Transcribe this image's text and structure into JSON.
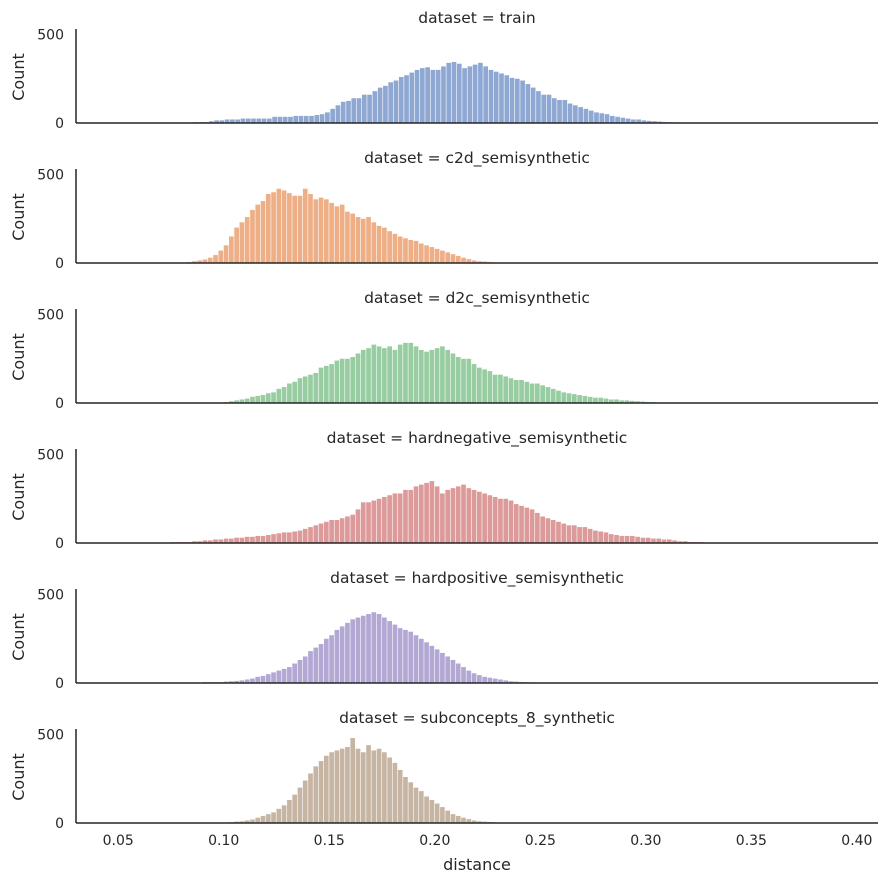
{
  "chart_data": {
    "type": "bar",
    "layout": "faceted histogram, one row per dataset, shared x axis",
    "xlabel": "distance",
    "ylabel": "Count",
    "xlim": [
      0.03,
      0.41
    ],
    "ylim": [
      0,
      520
    ],
    "xticks": [
      0.05,
      0.1,
      0.15,
      0.2,
      0.25,
      0.3,
      0.35,
      0.4
    ],
    "xtick_labels": [
      "0.05",
      "0.10",
      "0.15",
      "0.20",
      "0.25",
      "0.30",
      "0.35",
      "0.40"
    ],
    "yticks": [
      0,
      500
    ],
    "ytick_labels": [
      "0",
      "500"
    ],
    "grid": false,
    "facets": [
      {
        "title": "dataset = train",
        "color": "#8fa8d3",
        "bin_start": 0.0855,
        "bin_width": 0.0025,
        "counts": [
          5,
          5,
          5,
          10,
          15,
          15,
          20,
          20,
          20,
          25,
          25,
          25,
          25,
          25,
          25,
          35,
          35,
          35,
          35,
          40,
          40,
          40,
          40,
          45,
          50,
          60,
          80,
          100,
          120,
          125,
          140,
          140,
          160,
          160,
          180,
          200,
          210,
          230,
          240,
          260,
          270,
          285,
          300,
          310,
          315,
          300,
          300,
          320,
          340,
          345,
          335,
          310,
          320,
          330,
          340,
          320,
          300,
          290,
          280,
          270,
          255,
          250,
          240,
          220,
          200,
          180,
          160,
          160,
          140,
          130,
          130,
          110,
          100,
          90,
          80,
          70,
          60,
          55,
          50,
          40,
          35,
          30,
          25,
          20,
          20,
          15,
          12,
          10,
          8,
          6,
          5,
          4,
          3,
          3,
          2,
          2,
          1,
          1,
          1,
          1
        ]
      },
      {
        "title": "dataset = c2d_semisynthetic",
        "color": "#eeaf86",
        "bin_start": 0.0825,
        "bin_width": 0.0025,
        "counts": [
          5,
          10,
          15,
          20,
          30,
          45,
          70,
          100,
          150,
          200,
          230,
          260,
          300,
          330,
          350,
          390,
          400,
          420,
          410,
          395,
          380,
          380,
          420,
          390,
          360,
          370,
          360,
          340,
          320,
          330,
          290,
          280,
          260,
          250,
          260,
          230,
          210,
          200,
          180,
          165,
          150,
          140,
          130,
          125,
          110,
          100,
          90,
          80,
          70,
          60,
          50,
          40,
          30,
          22,
          15,
          10,
          8,
          6,
          4,
          3,
          2,
          1,
          1,
          1,
          1
        ]
      },
      {
        "title": "dataset = d2c_semisynthetic",
        "color": "#98cda1",
        "bin_start": 0.1,
        "bin_width": 0.0025,
        "counts": [
          5,
          10,
          15,
          20,
          25,
          35,
          40,
          45,
          55,
          60,
          80,
          90,
          110,
          120,
          140,
          150,
          160,
          170,
          200,
          210,
          220,
          240,
          250,
          250,
          260,
          280,
          300,
          310,
          330,
          320,
          310,
          320,
          300,
          330,
          340,
          340,
          320,
          300,
          290,
          300,
          310,
          320,
          300,
          280,
          260,
          250,
          250,
          220,
          200,
          190,
          180,
          160,
          160,
          150,
          140,
          130,
          130,
          120,
          110,
          110,
          100,
          90,
          80,
          70,
          60,
          55,
          50,
          45,
          40,
          35,
          30,
          30,
          25,
          20,
          20,
          15,
          15,
          12,
          10,
          8,
          6,
          5,
          4,
          3,
          2,
          2,
          1,
          1
        ]
      },
      {
        "title": "dataset = hardnegative_semisynthetic",
        "color": "#dd9a9b",
        "bin_start": 0.075,
        "bin_width": 0.0025,
        "counts": [
          5,
          5,
          5,
          5,
          10,
          10,
          15,
          15,
          20,
          20,
          25,
          25,
          30,
          30,
          35,
          35,
          40,
          40,
          45,
          50,
          55,
          60,
          60,
          65,
          70,
          80,
          90,
          100,
          110,
          120,
          130,
          130,
          140,
          150,
          160,
          190,
          230,
          230,
          240,
          250,
          260,
          270,
          280,
          280,
          300,
          300,
          320,
          330,
          340,
          350,
          320,
          280,
          300,
          310,
          320,
          330,
          310,
          300,
          290,
          280,
          270,
          260,
          250,
          250,
          240,
          220,
          210,
          200,
          190,
          170,
          150,
          140,
          130,
          120,
          110,
          100,
          100,
          90,
          90,
          80,
          70,
          65,
          60,
          50,
          45,
          40,
          40,
          40,
          35,
          30,
          30,
          25,
          25,
          20,
          20,
          15,
          10,
          10,
          5,
          5,
          5
        ]
      },
      {
        "title": "dataset = hardpositive_semisynthetic",
        "color": "#b3a7d4",
        "bin_start": 0.0875,
        "bin_width": 0.0025,
        "counts": [
          3,
          5,
          5,
          5,
          5,
          8,
          10,
          12,
          15,
          20,
          25,
          35,
          40,
          50,
          60,
          70,
          80,
          90,
          110,
          130,
          150,
          180,
          200,
          220,
          250,
          270,
          300,
          320,
          340,
          360,
          370,
          380,
          390,
          400,
          390,
          370,
          350,
          330,
          310,
          300,
          290,
          270,
          250,
          230,
          210,
          190,
          170,
          150,
          130,
          110,
          90,
          70,
          55,
          45,
          35,
          30,
          25,
          20,
          15,
          10,
          8,
          6,
          5,
          4,
          3,
          2,
          1,
          1,
          1
        ]
      },
      {
        "title": "dataset = subconcepts_8_synthetic",
        "color": "#c7b5a4",
        "bin_start": 0.1,
        "bin_width": 0.0025,
        "counts": [
          3,
          5,
          8,
          10,
          15,
          20,
          30,
          40,
          50,
          60,
          80,
          100,
          130,
          160,
          200,
          240,
          280,
          320,
          350,
          380,
          400,
          410,
          420,
          430,
          480,
          420,
          400,
          440,
          410,
          420,
          400,
          370,
          340,
          300,
          260,
          230,
          200,
          180,
          150,
          130,
          110,
          90,
          70,
          50,
          40,
          30,
          22,
          15,
          10,
          8,
          6,
          4,
          3,
          2,
          1,
          1
        ]
      }
    ]
  }
}
